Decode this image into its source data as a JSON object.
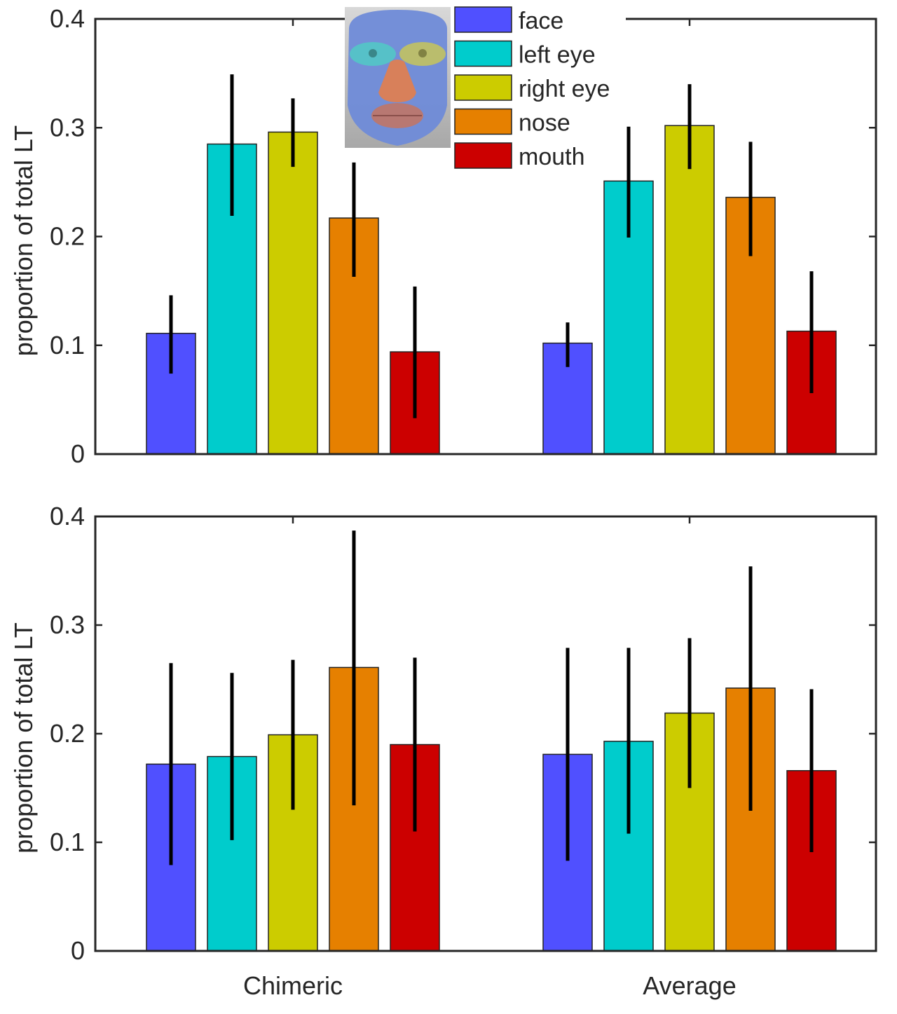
{
  "chart_data": [
    {
      "type": "bar",
      "categories": [
        "Chimeric",
        "Average"
      ],
      "ylabel": "proportion of total LT",
      "ylim": [
        0,
        0.4
      ],
      "yticks": [
        "0",
        "0.1",
        "0.2",
        "0.3",
        "0.4"
      ],
      "show_category_labels": false,
      "series": [
        {
          "name": "face",
          "values": [
            0.111,
            0.102
          ],
          "err_low": [
            0.074,
            0.08
          ],
          "err_high": [
            0.146,
            0.121
          ]
        },
        {
          "name": "left eye",
          "values": [
            0.285,
            0.251
          ],
          "err_low": [
            0.219,
            0.199
          ],
          "err_high": [
            0.349,
            0.301
          ]
        },
        {
          "name": "right eye",
          "values": [
            0.296,
            0.302
          ],
          "err_low": [
            0.264,
            0.262
          ],
          "err_high": [
            0.327,
            0.34
          ]
        },
        {
          "name": "nose",
          "values": [
            0.217,
            0.236
          ],
          "err_low": [
            0.163,
            0.182
          ],
          "err_high": [
            0.268,
            0.287
          ]
        },
        {
          "name": "mouth",
          "values": [
            0.094,
            0.113
          ],
          "err_low": [
            0.033,
            0.056
          ],
          "err_high": [
            0.154,
            0.168
          ]
        }
      ]
    },
    {
      "type": "bar",
      "categories": [
        "Chimeric",
        "Average"
      ],
      "ylabel": "proportion of total LT",
      "ylim": [
        0,
        0.4
      ],
      "yticks": [
        "0",
        "0.1",
        "0.2",
        "0.3",
        "0.4"
      ],
      "show_category_labels": true,
      "series": [
        {
          "name": "face",
          "values": [
            0.172,
            0.181
          ],
          "err_low": [
            0.079,
            0.083
          ],
          "err_high": [
            0.265,
            0.279
          ]
        },
        {
          "name": "left eye",
          "values": [
            0.179,
            0.193
          ],
          "err_low": [
            0.102,
            0.108
          ],
          "err_high": [
            0.256,
            0.279
          ]
        },
        {
          "name": "right eye",
          "values": [
            0.199,
            0.219
          ],
          "err_low": [
            0.13,
            0.15
          ],
          "err_high": [
            0.268,
            0.288
          ]
        },
        {
          "name": "nose",
          "values": [
            0.261,
            0.242
          ],
          "err_low": [
            0.134,
            0.129
          ],
          "err_high": [
            0.387,
            0.354
          ]
        },
        {
          "name": "mouth",
          "values": [
            0.19,
            0.166
          ],
          "err_low": [
            0.11,
            0.091
          ],
          "err_high": [
            0.27,
            0.241
          ]
        }
      ]
    }
  ],
  "legend": {
    "position": "top-center",
    "entries": [
      "face",
      "left eye",
      "right eye",
      "nose",
      "mouth"
    ]
  },
  "colors": {
    "face": "#5050ff",
    "left eye": "#00cccc",
    "right eye": "#cccc00",
    "nose": "#e68000",
    "mouth": "#cc0000",
    "axis": "#262626",
    "errorbar": "#000000"
  }
}
